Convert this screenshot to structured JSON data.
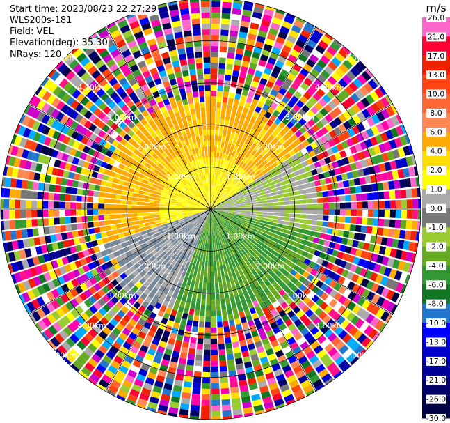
{
  "header": {
    "start_time": "Start time: 2023/08/23 22:27:29",
    "instrument": "WLS200s-181",
    "field": "Field: VEL",
    "elevation": "Elevation(deg): 35.30",
    "nrays": "NRays: 120"
  },
  "chart_data": {
    "type": "heatmap",
    "subtype": "polar-ppi",
    "field": "VEL",
    "nrays": 120,
    "unit_label": "m/s",
    "range_rings_km": [
      1,
      2,
      3,
      4,
      5
    ],
    "ring_labels": [
      "1.00km",
      "2.00km",
      "3.00km",
      "4.00km",
      "5.00km"
    ],
    "max_range_km": 5.0,
    "colorbar": {
      "ticks": [
        "26.0",
        "21.0",
        "17.0",
        "13.0",
        "10.0",
        "8.0",
        "6.0",
        "4.0",
        "2.0",
        "1.0",
        "0.0",
        "-1.0",
        "-2.0",
        "-4.0",
        "-6.0",
        "-8.0",
        "-10.0",
        "-13.0",
        "-17.0",
        "-21.0",
        "-26.0",
        "-30.0"
      ],
      "colors": [
        "#ff66cc",
        "#ff0033",
        "#ee2200",
        "#ff4411",
        "#ff6633",
        "#ff8855",
        "#ffaa00",
        "#ffdd00",
        "#ffff00",
        "#aaaaaa",
        "#777777",
        "#99cc33",
        "#66aa22",
        "#339933",
        "#117722",
        "#2277cc",
        "#0000ff",
        "#0000cc",
        "#000099",
        "#000066",
        "#000044"
      ]
    },
    "pattern": {
      "near_range_positive_sector": "west-north (orange/yellow)",
      "near_range_negative_sector": "south-east (green)",
      "far_range": "noise"
    }
  }
}
